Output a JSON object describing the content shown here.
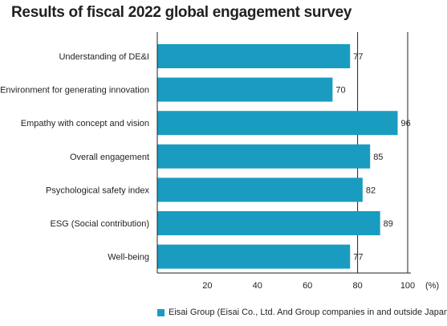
{
  "title": "Results of fiscal 2022 global engagement survey",
  "colors": {
    "bar": "#1a9cc0",
    "axis": "#231f20",
    "grid": "#231f20"
  },
  "chart_data": {
    "type": "bar",
    "orientation": "horizontal",
    "categories": [
      "Understanding of DE&I",
      "Environment for generating innovation",
      "Empathy with concept and vision",
      "Overall engagement",
      "Psychological safety index",
      "ESG (Social contribution)",
      "Well-being"
    ],
    "series": [
      {
        "name": "Eisai Group (Eisai Co., Ltd. And Group companies in and outside Japan)",
        "values": [
          77,
          70,
          96,
          85,
          82,
          89,
          77
        ]
      }
    ],
    "xticks": [
      "20",
      "40",
      "60",
      "80",
      "100"
    ],
    "xunit": "(%)",
    "xlim": [
      0,
      100
    ],
    "grid": "vertical at 80 and 100",
    "legend_position": "bottom"
  }
}
